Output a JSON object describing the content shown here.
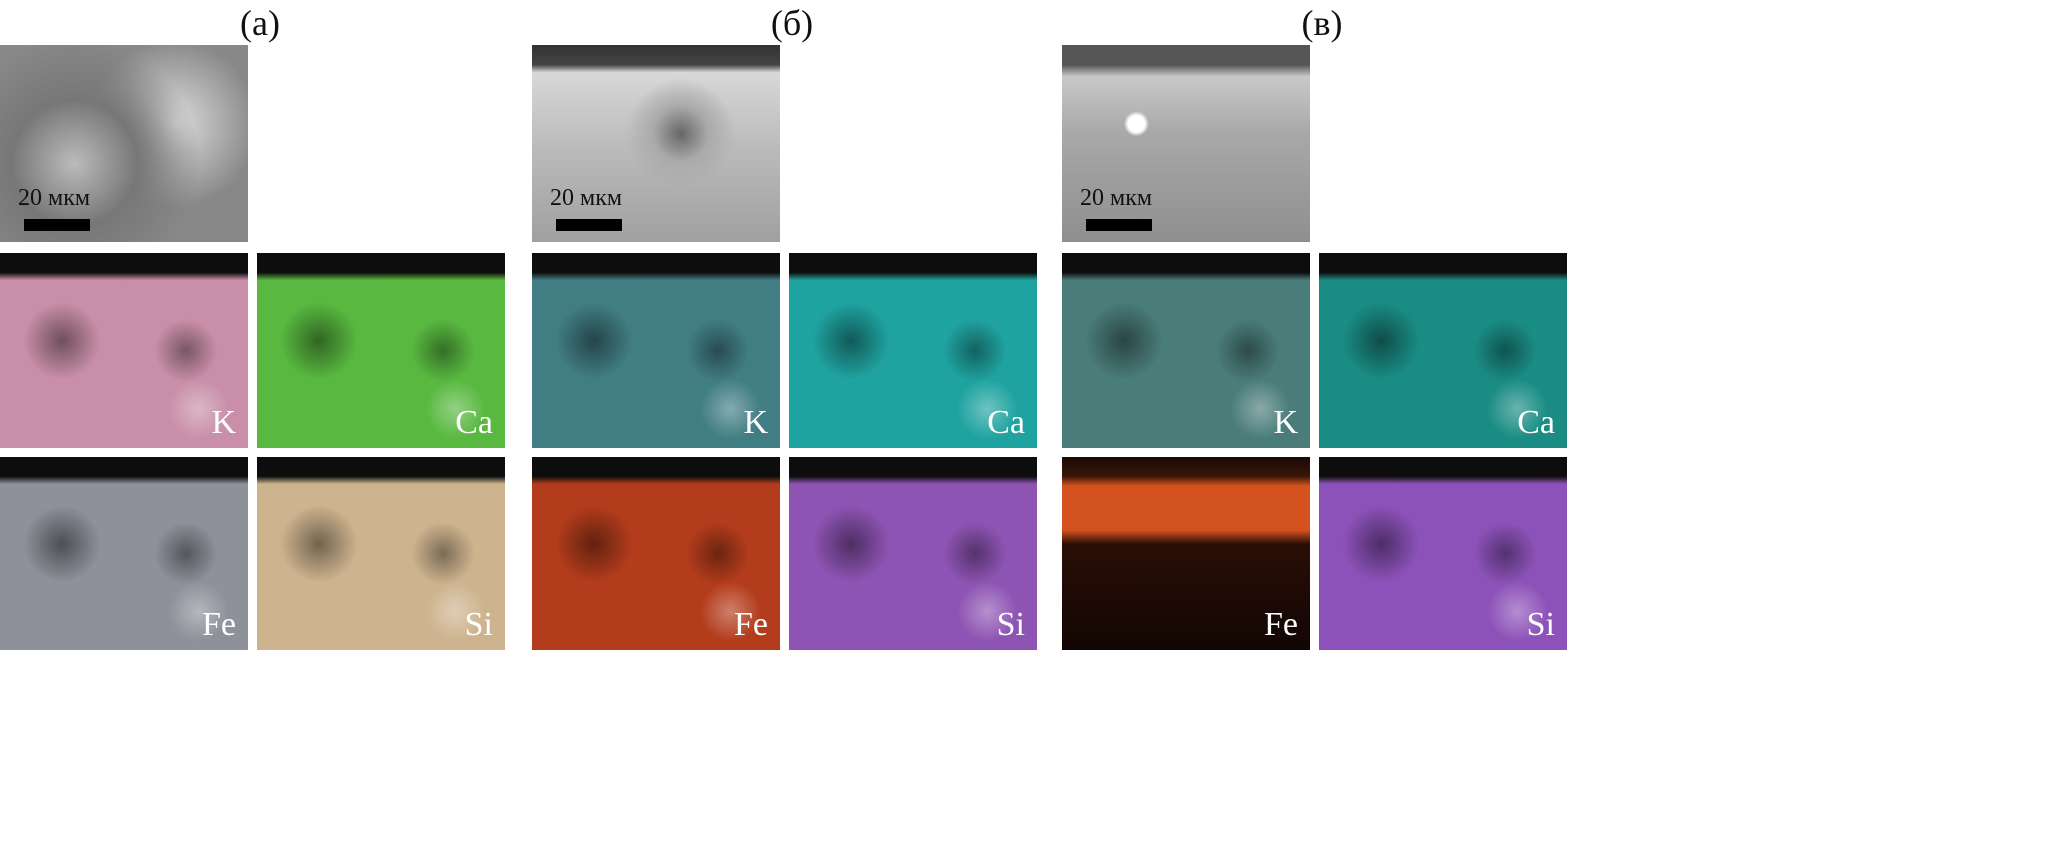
{
  "panels": [
    {
      "label": "(а)",
      "scale": "20 мкм",
      "maps": [
        {
          "element": "K",
          "color": "#c98fa8"
        },
        {
          "element": "Ca",
          "color": "#58b840"
        },
        {
          "element": "Fe",
          "color": "#8e909a"
        },
        {
          "element": "Si",
          "color": "#cdb38e"
        }
      ]
    },
    {
      "label": "(б)",
      "scale": "20 мкм",
      "maps": [
        {
          "element": "K",
          "color": "#417e84"
        },
        {
          "element": "Ca",
          "color": "#1fa3a0"
        },
        {
          "element": "Fe",
          "color": "#b33c1c"
        },
        {
          "element": "Si",
          "color": "#8d54b3"
        }
      ]
    },
    {
      "label": "(в)",
      "scale": "20 мкм",
      "maps": [
        {
          "element": "K",
          "color": "#4a7c7a"
        },
        {
          "element": "Ca",
          "color": "#1a8c84"
        },
        {
          "element": "Fe",
          "color": "#d4521e"
        },
        {
          "element": "Si",
          "color": "#8c52b9"
        }
      ]
    }
  ]
}
